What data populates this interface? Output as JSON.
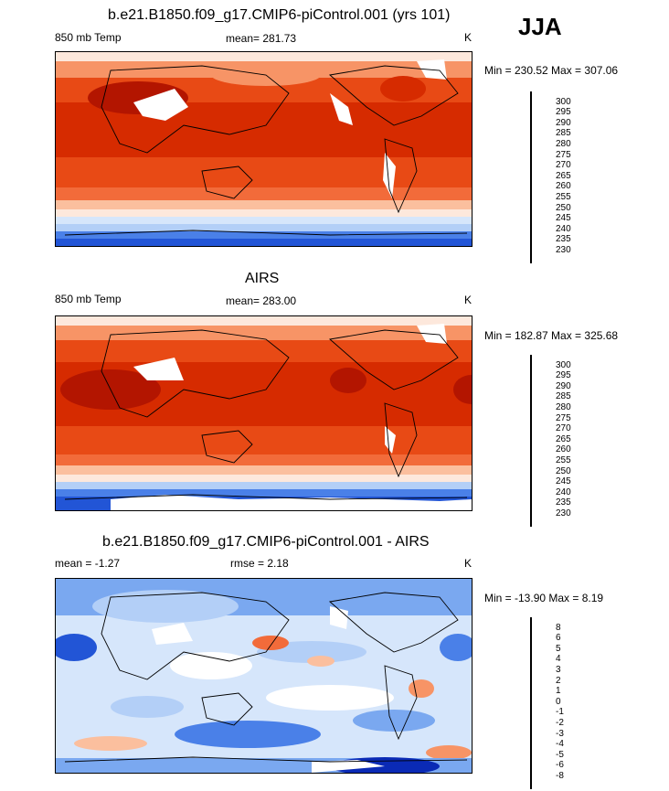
{
  "season": "JJA",
  "panels": [
    {
      "title": "b.e21.B1850.f09_g17.CMIP6-piControl.001 (yrs 101)",
      "left_label": "850 mb Temp",
      "center_label": "mean= 281.73",
      "units": "K",
      "minmax": "Min = 230.52 Max = 307.06",
      "cb_levels": [
        "300",
        "295",
        "290",
        "285",
        "280",
        "275",
        "270",
        "265",
        "260",
        "255",
        "250",
        "245",
        "240",
        "235",
        "230"
      ],
      "cb_colors": [
        "#8b0000",
        "#b31500",
        "#d62b00",
        "#e84a15",
        "#f26b3a",
        "#f79466",
        "#fbbf9e",
        "#fde8dc",
        "#ffffff",
        "#d6e6fb",
        "#b3cff7",
        "#7aa8f0",
        "#4a80e8",
        "#2255d6",
        "#0a2ab5",
        "#000f8b"
      ]
    },
    {
      "title": "AIRS",
      "left_label": "850 mb Temp",
      "center_label": "mean= 283.00",
      "units": "K",
      "minmax": "Min = 182.87 Max = 325.68",
      "cb_levels": [
        "300",
        "295",
        "290",
        "285",
        "280",
        "275",
        "270",
        "265",
        "260",
        "255",
        "250",
        "245",
        "240",
        "235",
        "230"
      ],
      "cb_colors": [
        "#8b0000",
        "#b31500",
        "#d62b00",
        "#e84a15",
        "#f26b3a",
        "#f79466",
        "#fbbf9e",
        "#fde8dc",
        "#ffffff",
        "#d6e6fb",
        "#b3cff7",
        "#7aa8f0",
        "#4a80e8",
        "#2255d6",
        "#0a2ab5",
        "#000f8b"
      ]
    },
    {
      "title": "b.e21.B1850.f09_g17.CMIP6-piControl.001 - AIRS",
      "left_label": "mean =  -1.27",
      "center_label": "rmse =   2.18",
      "units": "K",
      "minmax": "Min = -13.90 Max =   8.19",
      "cb_levels": [
        "8",
        "6",
        "5",
        "4",
        "3",
        "2",
        "1",
        "0",
        "-1",
        "-2",
        "-3",
        "-4",
        "-5",
        "-6",
        "-8"
      ],
      "cb_colors": [
        "#8b0000",
        "#b31500",
        "#d62b00",
        "#e84a15",
        "#f26b3a",
        "#f79466",
        "#fbbf9e",
        "#fde8dc",
        "#ffffff",
        "#d6e6fb",
        "#b3cff7",
        "#7aa8f0",
        "#4a80e8",
        "#2255d6",
        "#0a2ab5",
        "#000f8b"
      ]
    }
  ],
  "chart_data": [
    {
      "type": "heatmap",
      "title": "b.e21.B1850.f09_g17.CMIP6-piControl.001 (yrs 101)",
      "variable": "850 mb Temp",
      "units": "K",
      "mean": 281.73,
      "min": 230.52,
      "max": 307.06,
      "contour_levels": [
        230,
        235,
        240,
        245,
        250,
        255,
        260,
        265,
        270,
        275,
        280,
        285,
        290,
        295,
        300
      ]
    },
    {
      "type": "heatmap",
      "title": "AIRS",
      "variable": "850 mb Temp",
      "units": "K",
      "mean": 283.0,
      "min": 182.87,
      "max": 325.68,
      "contour_levels": [
        230,
        235,
        240,
        245,
        250,
        255,
        260,
        265,
        270,
        275,
        280,
        285,
        290,
        295,
        300
      ]
    },
    {
      "type": "heatmap",
      "title": "b.e21.B1850.f09_g17.CMIP6-piControl.001 - AIRS",
      "units": "K",
      "mean": -1.27,
      "rmse": 2.18,
      "min": -13.9,
      "max": 8.19,
      "contour_levels": [
        -8,
        -6,
        -5,
        -4,
        -3,
        -2,
        -1,
        0,
        1,
        2,
        3,
        4,
        5,
        6,
        8
      ]
    }
  ]
}
